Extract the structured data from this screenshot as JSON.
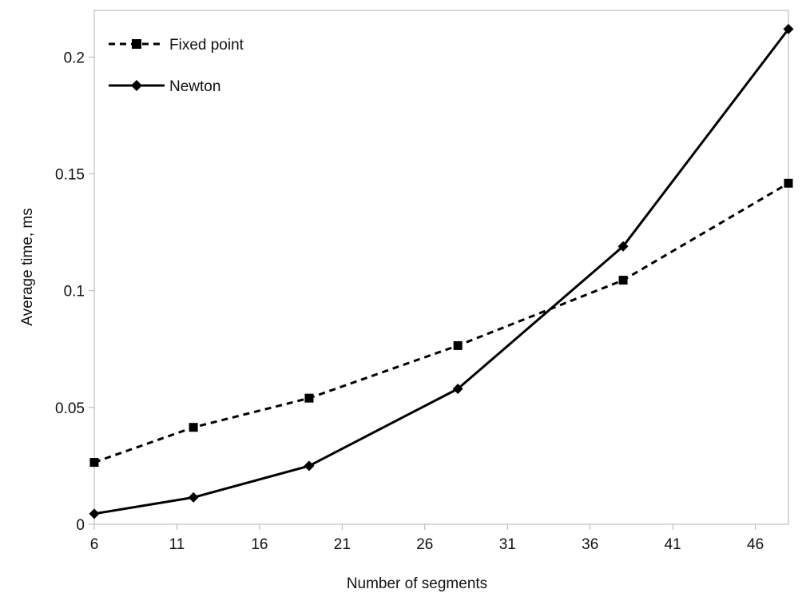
{
  "chart_data": {
    "type": "line",
    "title": "",
    "xlabel": "Number of segments",
    "ylabel": "Average time, ms",
    "xlim": [
      6,
      48
    ],
    "ylim": [
      0,
      0.22
    ],
    "xticks": [
      6,
      11,
      16,
      21,
      26,
      31,
      36,
      41,
      46
    ],
    "xtick_labels": [
      "6",
      "11",
      "16",
      "21",
      "26",
      "31",
      "36",
      "41",
      "46"
    ],
    "yticks": [
      0,
      0.05,
      0.1,
      0.15,
      0.2
    ],
    "ytick_labels": [
      "0",
      "0.05",
      "0.1",
      "0.15",
      "0.2"
    ],
    "grid": false,
    "legend_position": "top-left",
    "series": [
      {
        "name": "Fixed point",
        "marker": "square",
        "line_style": "dashed",
        "color": "#000000",
        "x": [
          6,
          12,
          19,
          28,
          38,
          48
        ],
        "y": [
          0.0265,
          0.0415,
          0.054,
          0.0765,
          0.1045,
          0.146
        ]
      },
      {
        "name": "Newton",
        "marker": "diamond",
        "line_style": "solid",
        "color": "#000000",
        "x": [
          6,
          12,
          19,
          28,
          38,
          48
        ],
        "y": [
          0.0045,
          0.0115,
          0.025,
          0.058,
          0.119,
          0.212
        ]
      }
    ]
  }
}
